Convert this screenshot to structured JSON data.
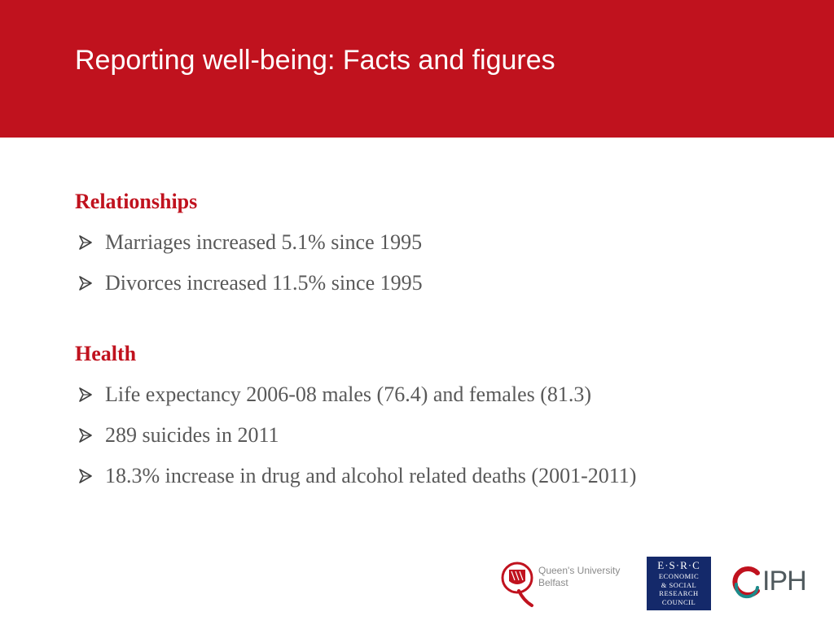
{
  "slide": {
    "title": "Reporting well-being: Facts and figures",
    "header_color": "#c0121e"
  },
  "sections": [
    {
      "heading": "Relationships",
      "bullets": [
        "Marriages increased 5.1% since 1995",
        "Divorces increased 11.5% since 1995"
      ]
    },
    {
      "heading": "Health",
      "bullets": [
        "Life expectancy 2006-08 males (76.4) and females (81.3)",
        "289 suicides in 2011",
        "18.3% increase in drug and alcohol related deaths (2001-2011)"
      ]
    }
  ],
  "bullet_icon": "arrow-bullet-icon",
  "logos": {
    "qub": {
      "icon": "queens-university-crest-icon",
      "line1": "Queen's University",
      "line2": "Belfast"
    },
    "esrc": {
      "icon": "esrc-logo-icon",
      "line1": "E·S·R·C",
      "line2": "ECONOMIC",
      "line3": "& SOCIAL",
      "line4": "RESEARCH",
      "line5": "COUNCIL"
    },
    "iph": {
      "icon": "iph-logo-icon",
      "text": "IPH"
    }
  }
}
